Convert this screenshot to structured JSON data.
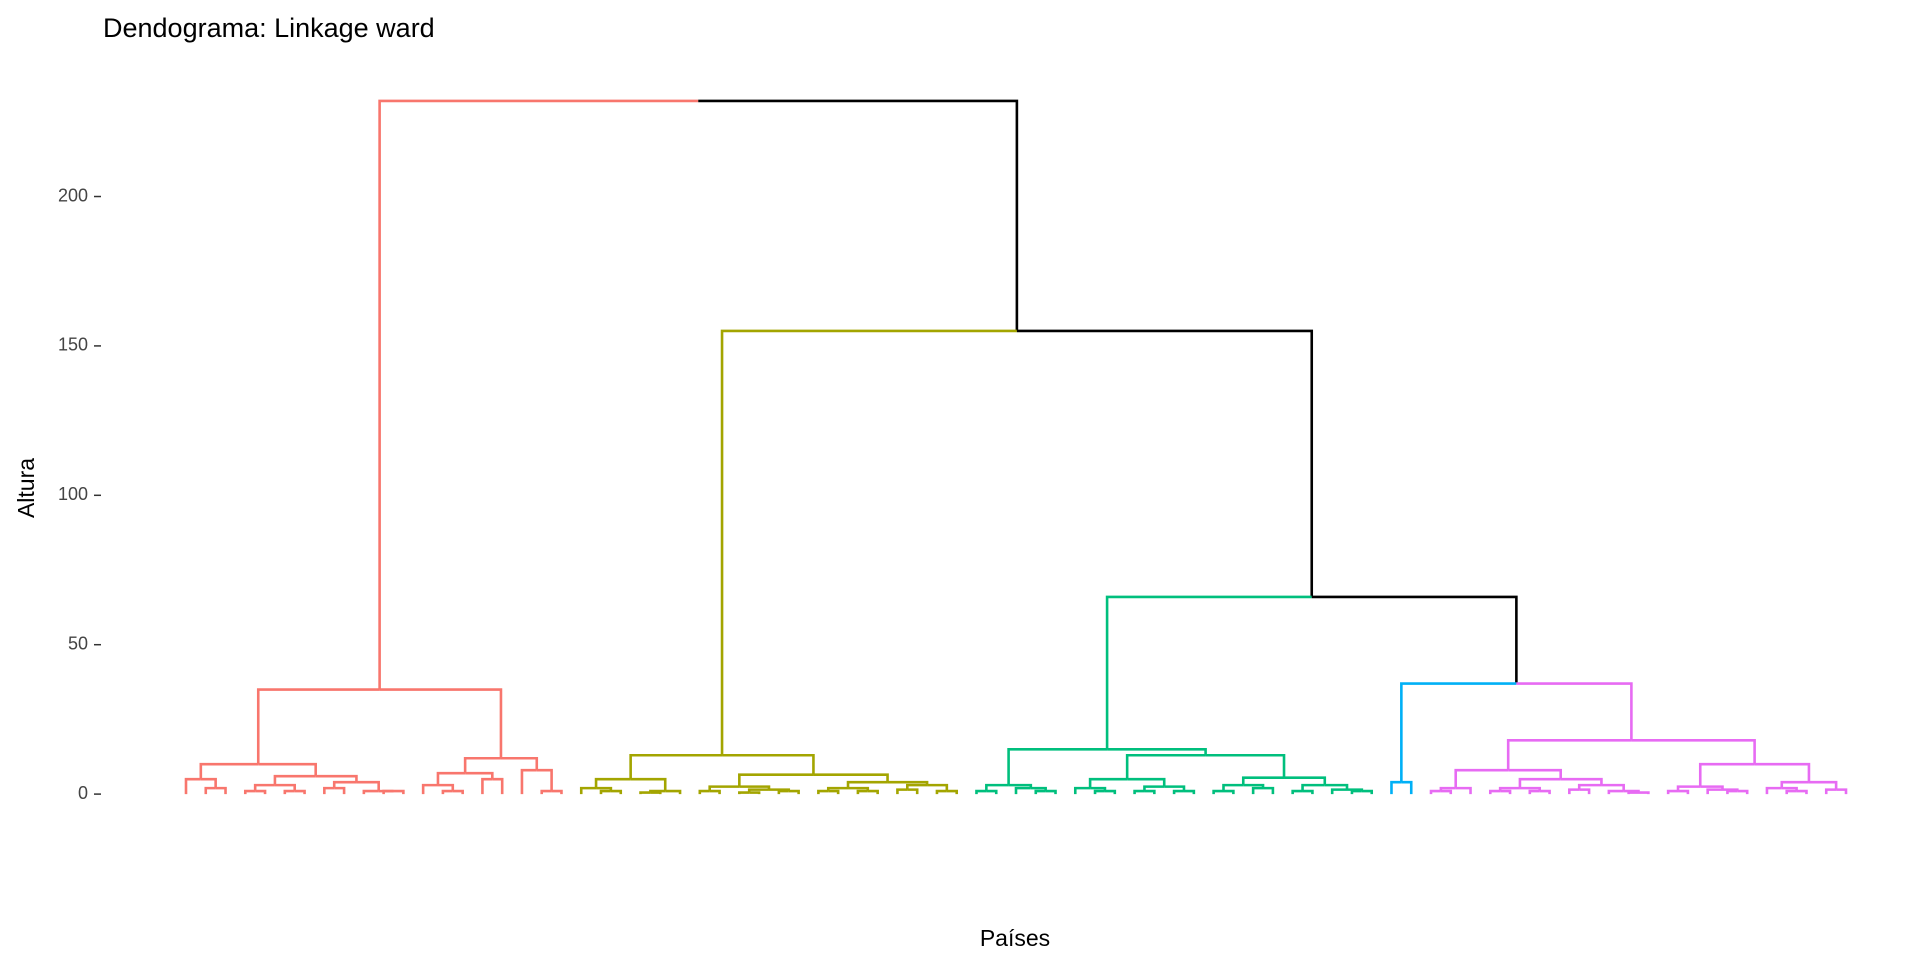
{
  "chart_data": {
    "type": "dendrogram",
    "title": "Dendograma: Linkage ward",
    "x_label": "Países",
    "y_label": "Altura",
    "ylim": [
      -8,
      240
    ],
    "yticks": [
      0,
      50,
      100,
      150,
      200
    ],
    "k": 5,
    "colors": [
      "#F8766D",
      "#A3A500",
      "#00BF7D",
      "#00B0F6",
      "#E76BF3"
    ],
    "above_color": "#000000",
    "tree": [
      232,
      [
        35,
        [
          10,
          [
            5,
            0,
            [
              2,
              0,
              0
            ]
          ],
          [
            6,
            [
              3,
              [
                1,
                0,
                0
              ],
              [
                1,
                0,
                0
              ]
            ],
            [
              4,
              [
                2,
                0,
                0
              ],
              [
                1,
                0,
                [
                  1,
                  0,
                  0
                ]
              ]
            ]
          ]
        ],
        [
          12,
          [
            7,
            [
              3,
              0,
              [
                1,
                0,
                0
              ]
            ],
            [
              5,
              0,
              0
            ]
          ],
          [
            8,
            0,
            [
              1,
              0,
              0
            ]
          ]
        ]
      ],
      [
        155,
        [
          13,
          [
            5,
            [
              2,
              0,
              [
                1,
                0,
                0
              ]
            ],
            [
              1,
              [
                0.5,
                0,
                0
              ],
              0
            ]
          ],
          [
            6.5,
            [
              2.5,
              [
                1,
                0,
                0
              ],
              [
                1.5,
                [
                  0.5,
                  0,
                  0
                ],
                [
                  1,
                  0,
                  0
                ]
              ]
            ],
            [
              4,
              [
                2,
                [
                  1,
                  0,
                  0
                ],
                [
                  1,
                  0,
                  0
                ]
              ],
              [
                3,
                [
                  1.5,
                  0,
                  0
                ],
                [
                  1,
                  0,
                  0
                ]
              ]
            ]
          ]
        ],
        [
          66,
          [
            15,
            [
              3,
              [
                1,
                0,
                0
              ],
              [
                2,
                0,
                [
                  1,
                  0,
                  0
                ]
              ]
            ],
            [
              13,
              [
                5,
                [
                  2,
                  0,
                  [
                    1,
                    0,
                    0
                  ]
                ],
                [
                  2.5,
                  [
                    1,
                    0,
                    0
                  ],
                  [
                    1,
                    0,
                    0
                  ]
                ]
              ],
              [
                5.5,
                [
                  3,
                  [
                    1,
                    0,
                    0
                  ],
                  [
                    2,
                    0,
                    0
                  ]
                ],
                [
                  3,
                  [
                    1,
                    0,
                    0
                  ],
                  [
                    1.5,
                    0,
                    [
                      1,
                      0,
                      0
                    ]
                  ]
                ]
              ]
            ]
          ],
          [
            37,
            [
              4,
              0,
              0
            ],
            [
              18,
              [
                8,
                [
                  2,
                  [
                    1,
                    0,
                    0
                  ],
                  0
                ],
                [
                  5,
                  [
                    2,
                    [
                      1,
                      0,
                      0
                    ],
                    [
                      1,
                      0,
                      0
                    ]
                  ],
                  [
                    3,
                    [
                      1.5,
                      0,
                      0
                    ],
                    [
                      1,
                      0,
                      [
                        0.5,
                        0,
                        0
                      ]
                    ]
                  ]
                ]
              ],
              [
                10,
                [
                  2.5,
                  [
                    1,
                    0,
                    0
                  ],
                  [
                    1.5,
                    0,
                    [
                      1,
                      0,
                      0
                    ]
                  ]
                ],
                [
                  4,
                  [
                    2,
                    0,
                    [
                      1,
                      0,
                      0
                    ]
                  ],
                  [
                    1.5,
                    0,
                    0
                  ]
                ]
              ]
            ]
          ]
        ]
      ]
    ]
  }
}
